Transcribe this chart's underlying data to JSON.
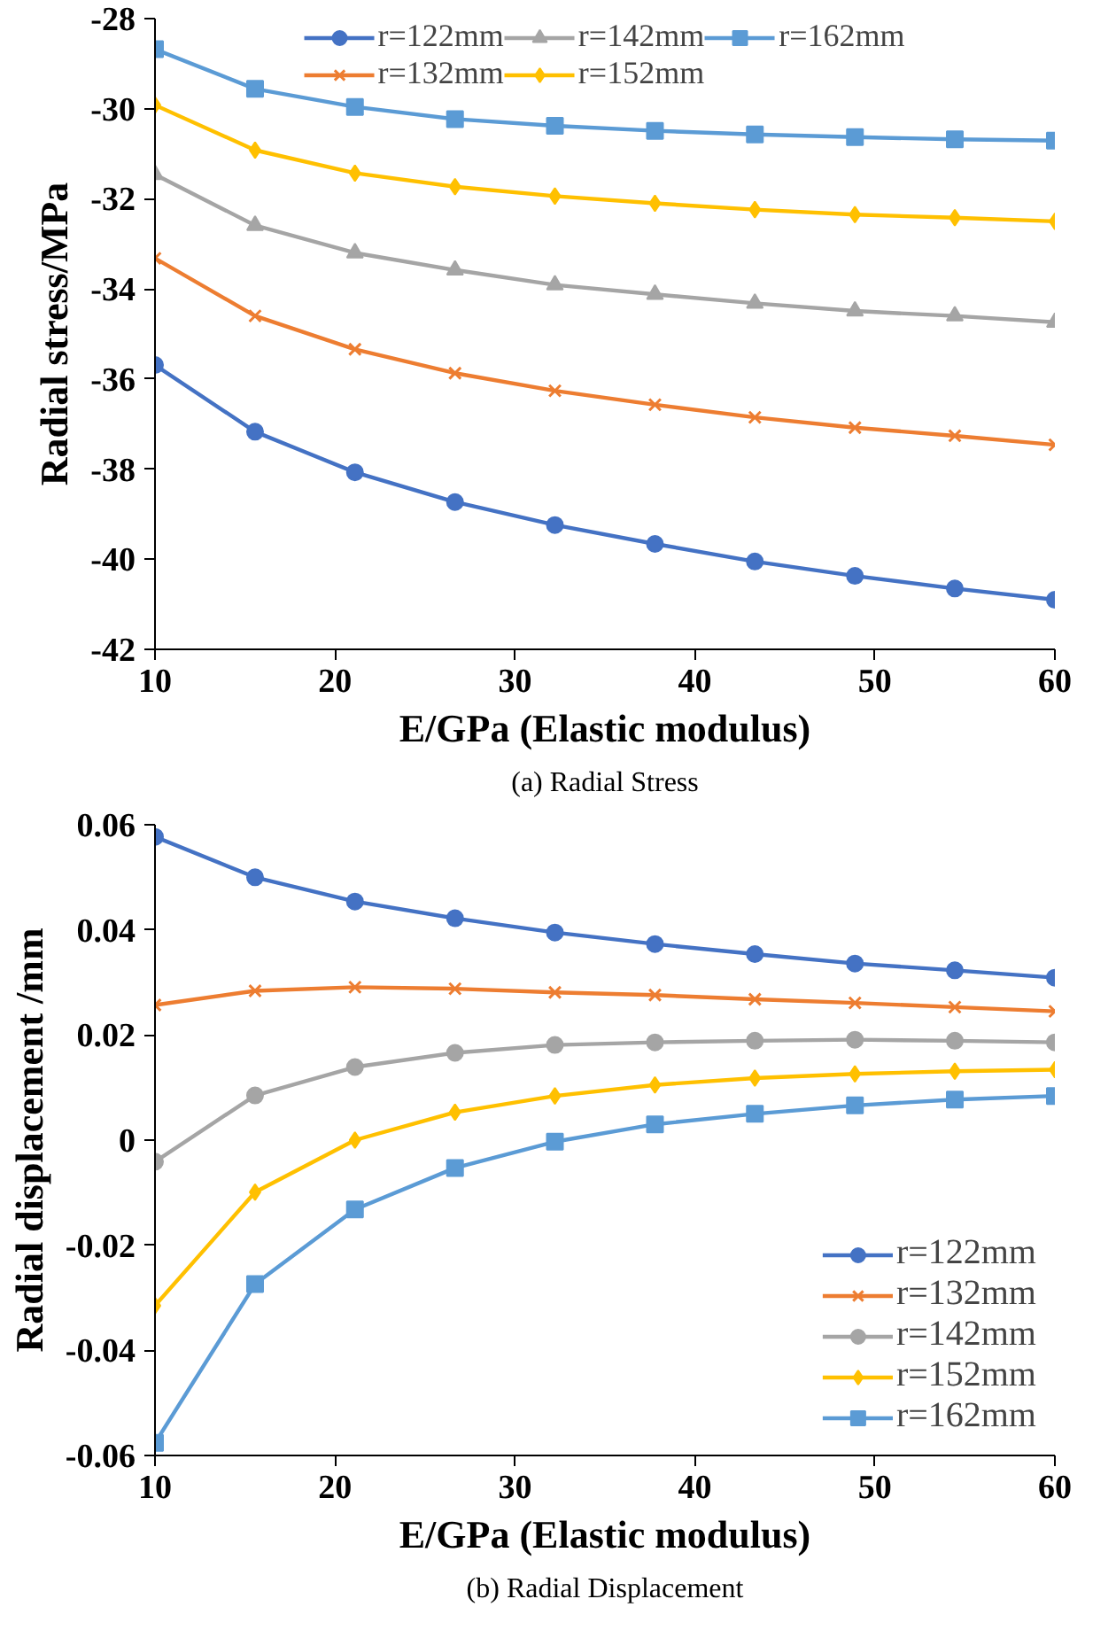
{
  "chart_data": [
    {
      "type": "line",
      "xlabel": "E/GPa (Elastic modulus)",
      "ylabel": "Radial stress/MPa",
      "annotations": [
        "(a) Radial Stress"
      ],
      "x": [
        10,
        15.56,
        21.11,
        26.67,
        32.22,
        37.78,
        43.33,
        48.89,
        54.44,
        60
      ],
      "xlim": [
        10,
        60
      ],
      "xticks": [
        10,
        20,
        30,
        40,
        50,
        60
      ],
      "ylim": [
        -42,
        -28
      ],
      "yticks": [
        -42,
        -40,
        -38,
        -36,
        -34,
        -32,
        -30,
        -28
      ],
      "grid": false,
      "legend": "top",
      "series": [
        {
          "name": "r=122mm",
          "color": "#4472c4",
          "marker": "circle",
          "values": [
            -35.69,
            -37.17,
            -38.07,
            -38.73,
            -39.24,
            -39.66,
            -40.05,
            -40.37,
            -40.65,
            -40.9
          ]
        },
        {
          "name": "r=132mm",
          "color": "#ed7d31",
          "marker": "cross",
          "values": [
            -33.32,
            -34.6,
            -35.34,
            -35.87,
            -36.26,
            -36.57,
            -36.85,
            -37.08,
            -37.26,
            -37.46
          ]
        },
        {
          "name": "r=142mm",
          "color": "#a5a5a5",
          "marker": "triangle",
          "values": [
            -31.46,
            -32.59,
            -33.2,
            -33.58,
            -33.91,
            -34.12,
            -34.32,
            -34.49,
            -34.6,
            -34.74
          ]
        },
        {
          "name": "r=152mm",
          "color": "#ffc000",
          "marker": "diamond",
          "values": [
            -29.92,
            -30.92,
            -31.43,
            -31.73,
            -31.94,
            -32.1,
            -32.24,
            -32.35,
            -32.42,
            -32.5
          ]
        },
        {
          "name": "r=162mm",
          "color": "#5b9bd5",
          "marker": "square",
          "values": [
            -28.68,
            -29.56,
            -29.96,
            -30.23,
            -30.38,
            -30.49,
            -30.57,
            -30.63,
            -30.68,
            -30.71
          ]
        }
      ]
    },
    {
      "type": "line",
      "xlabel": "E/GPa (Elastic modulus)",
      "ylabel": "Radial displacement /mm",
      "annotations": [
        "(b) Radial Displacement"
      ],
      "x": [
        10,
        15.56,
        21.11,
        26.67,
        32.22,
        37.78,
        43.33,
        48.89,
        54.44,
        60
      ],
      "xlim": [
        10,
        60
      ],
      "xticks": [
        10,
        20,
        30,
        40,
        50,
        60
      ],
      "ylim": [
        -0.06,
        0.06
      ],
      "yticks": [
        -0.06,
        -0.04,
        -0.02,
        0,
        0.02,
        0.04,
        0.06
      ],
      "grid": false,
      "legend": "bottom right",
      "series": [
        {
          "name": "r=122mm",
          "color": "#4472c4",
          "marker": "circle",
          "values": [
            0.0577,
            0.05,
            0.0454,
            0.0422,
            0.0395,
            0.0373,
            0.0354,
            0.0336,
            0.0323,
            0.0309
          ]
        },
        {
          "name": "r=132mm",
          "color": "#ed7d31",
          "marker": "cross",
          "values": [
            0.0257,
            0.0284,
            0.0291,
            0.0288,
            0.0281,
            0.0276,
            0.0268,
            0.0261,
            0.0253,
            0.0245
          ]
        },
        {
          "name": "r=142mm",
          "color": "#a5a5a5",
          "marker": "circle",
          "values": [
            -0.0041,
            0.0085,
            0.0139,
            0.0166,
            0.0181,
            0.0186,
            0.0189,
            0.0191,
            0.0189,
            0.0186
          ]
        },
        {
          "name": "r=152mm",
          "color": "#ffc000",
          "marker": "diamond",
          "values": [
            -0.0315,
            -0.0099,
            0,
            0.0053,
            0.0084,
            0.0105,
            0.0118,
            0.0126,
            0.0131,
            0.0134
          ]
        },
        {
          "name": "r=162mm",
          "color": "#5b9bd5",
          "marker": "square",
          "values": [
            -0.0576,
            -0.0274,
            -0.0132,
            -0.0053,
            -0.0003,
            0.003,
            0.005,
            0.0066,
            0.0077,
            0.0084
          ]
        }
      ]
    }
  ]
}
